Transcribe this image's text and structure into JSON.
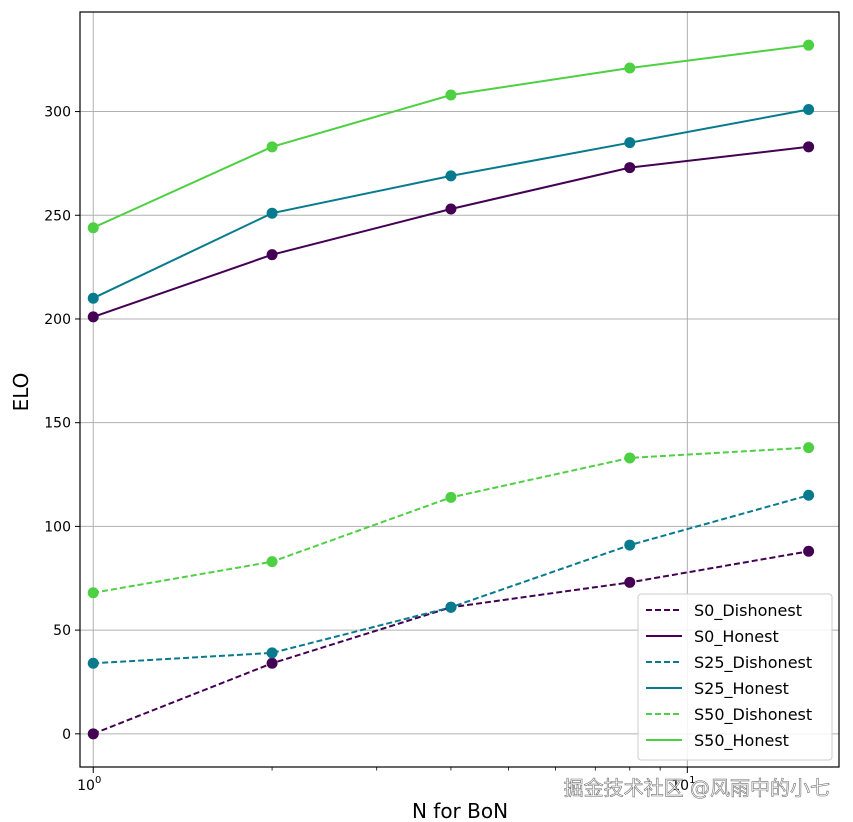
{
  "chart_data": {
    "type": "line",
    "title": "",
    "xlabel": "N for BoN",
    "ylabel": "ELO",
    "xscale": "log",
    "x": [
      1,
      2,
      4,
      8,
      16
    ],
    "xlim": [
      0.95,
      18
    ],
    "ylim": [
      -16,
      348
    ],
    "yticks": [
      0,
      50,
      100,
      150,
      200,
      250,
      300
    ],
    "xticks_major": [
      {
        "value": 1,
        "base": "10",
        "exp": "0"
      },
      {
        "value": 10,
        "base": "10",
        "exp": "1"
      }
    ],
    "xticks_minor": [
      2,
      3,
      4,
      5,
      6,
      7,
      8,
      9
    ],
    "grid": true,
    "legend_position": "bottom-right",
    "series": [
      {
        "name": "S0_Dishonest",
        "color": "#440154",
        "dashed": true,
        "values": [
          0,
          34,
          61,
          73,
          88
        ]
      },
      {
        "name": "S0_Honest",
        "color": "#440154",
        "dashed": false,
        "values": [
          201,
          231,
          253,
          273,
          283
        ]
      },
      {
        "name": "S25_Dishonest",
        "color": "#077b8d",
        "dashed": true,
        "values": [
          34,
          39,
          61,
          91,
          115
        ]
      },
      {
        "name": "S25_Honest",
        "color": "#077b8d",
        "dashed": false,
        "values": [
          210,
          251,
          269,
          285,
          301
        ]
      },
      {
        "name": "S50_Dishonest",
        "color": "#4ed043",
        "dashed": true,
        "values": [
          68,
          83,
          114,
          133,
          138
        ]
      },
      {
        "name": "S50_Honest",
        "color": "#4ed043",
        "dashed": false,
        "values": [
          244,
          283,
          308,
          321,
          332
        ]
      }
    ]
  },
  "watermark": "掘金技术社区 @风雨中的小七"
}
